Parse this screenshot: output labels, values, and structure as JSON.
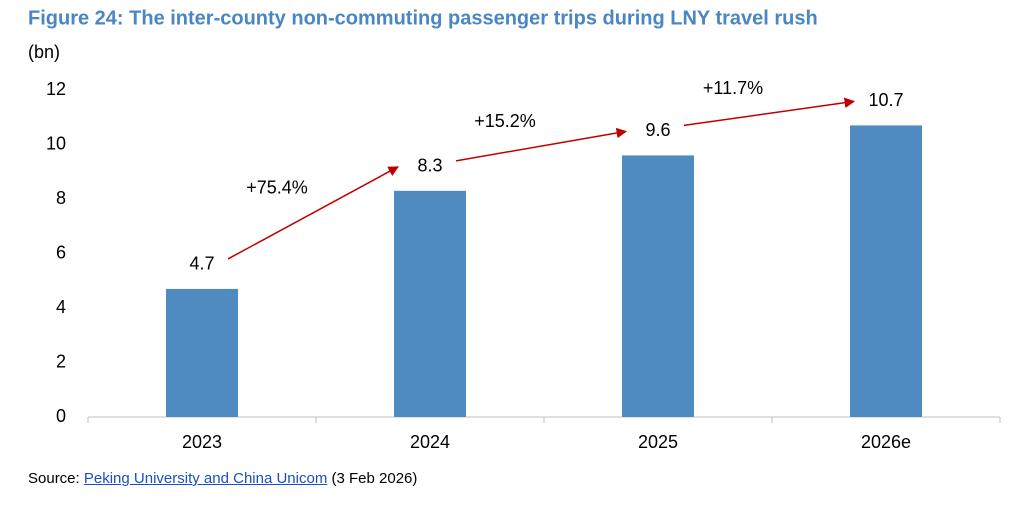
{
  "chart_data": {
    "type": "bar",
    "title": "Figure 24: The inter-county non-commuting passenger trips during LNY travel rush",
    "y_label": "(bn)",
    "categories": [
      "2023",
      "2024",
      "2025",
      "2026e"
    ],
    "values": [
      4.7,
      8.3,
      9.6,
      10.7
    ],
    "color": "#4f8bc1",
    "ylim": [
      0,
      12
    ],
    "yticks": [
      0,
      2,
      4,
      6,
      8,
      10,
      12
    ],
    "grid": false,
    "annotations": [
      "+75.4%",
      "+15.2%",
      "+11.7%"
    ],
    "arrow_color": "#c00000",
    "source": {
      "prefix": "Source:",
      "link": "Peking University and China Unicom",
      "suffix": "(3 Feb 2026)"
    }
  }
}
